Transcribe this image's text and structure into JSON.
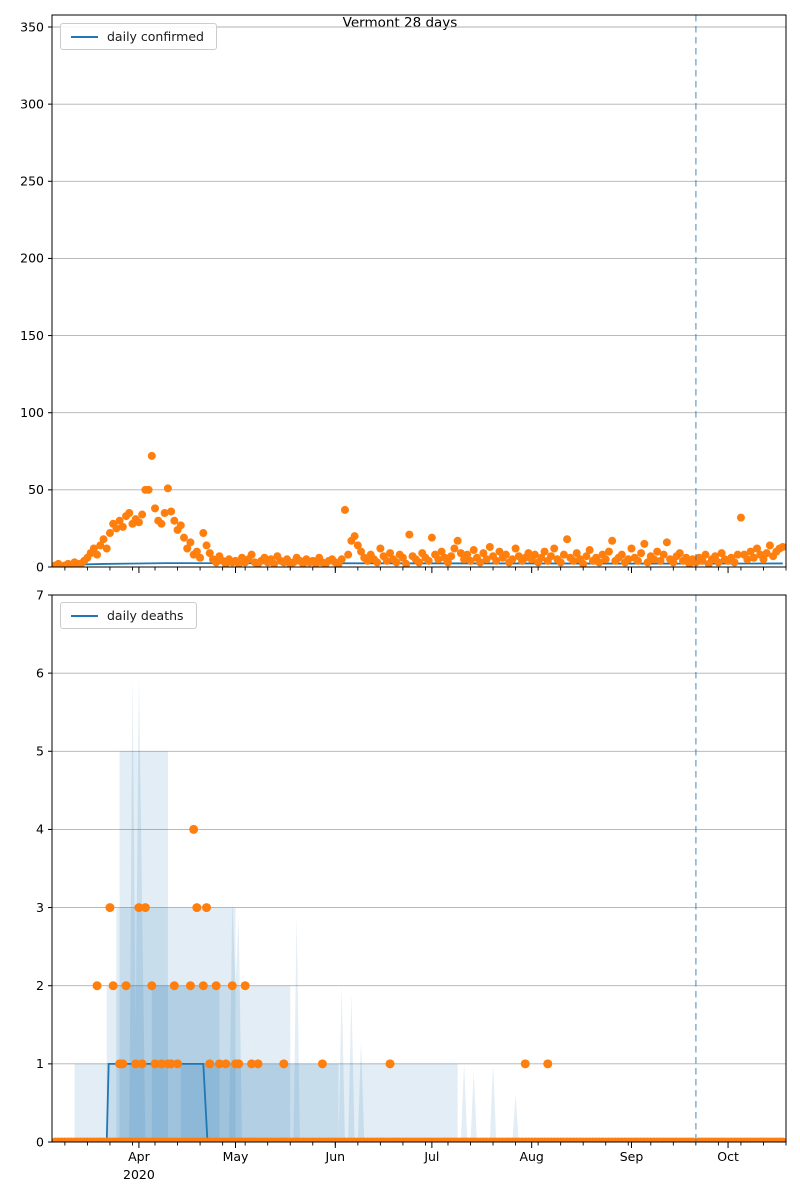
{
  "title": "Vermont 28 days",
  "colors": {
    "scatter": "#ff7f0e",
    "line": "#1f77b4",
    "band": "rgba(31,119,180,0.13)",
    "vline": "rgba(31,119,180,0.5)",
    "grid": "#b0b0b0",
    "spine": "#000000",
    "text": "#000000"
  },
  "x_axis": {
    "t_min": 4,
    "t_max": 232,
    "t_unit": "days since 2020-03-01",
    "months": [
      {
        "t": 31,
        "label": "Apr",
        "year": "2020"
      },
      {
        "t": 61,
        "label": "May"
      },
      {
        "t": 92,
        "label": "Jun"
      },
      {
        "t": 122,
        "label": "Jul"
      },
      {
        "t": 153,
        "label": "Aug"
      },
      {
        "t": 184,
        "label": "Sep"
      },
      {
        "t": 214,
        "label": "Oct"
      }
    ],
    "minor_start_t": 1,
    "minor_step_days": 7,
    "forecast_vline_t": 204
  },
  "chart_data": [
    {
      "type": "scatter",
      "legend": "daily confirmed",
      "title": "Vermont 28 days",
      "ylim": [
        0,
        350
      ],
      "yticks": [
        0,
        50,
        100,
        150,
        200,
        250,
        300,
        350
      ],
      "grid": "horizontal",
      "legend_position": "upper left",
      "scatter": {
        "t0": 5,
        "values": [
          1,
          2,
          0,
          1,
          2,
          1,
          3,
          2,
          2,
          4,
          6,
          9,
          12,
          8,
          14,
          18,
          12,
          22,
          28,
          25,
          30,
          26,
          33,
          35,
          28,
          31,
          29,
          34,
          50,
          50,
          72,
          38,
          30,
          28,
          35,
          51,
          36,
          30,
          24,
          27,
          19,
          12,
          16,
          8,
          10,
          6,
          22,
          14,
          9,
          5,
          3,
          7,
          4,
          2,
          5,
          3,
          4,
          2,
          6,
          3,
          5,
          8,
          3,
          2,
          4,
          6,
          3,
          5,
          2,
          7,
          4,
          3,
          5,
          2,
          3,
          6,
          4,
          2,
          5,
          3,
          4,
          2,
          6,
          3,
          2,
          4,
          5,
          3,
          2,
          5,
          37,
          8,
          17,
          20,
          14,
          10,
          6,
          4,
          8,
          5,
          3,
          12,
          7,
          4,
          9,
          5,
          3,
          8,
          6,
          2,
          21,
          7,
          5,
          3,
          9,
          6,
          4,
          19,
          8,
          5,
          10,
          6,
          3,
          7,
          12,
          17,
          9,
          5,
          8,
          4,
          11,
          6,
          3,
          9,
          5,
          13,
          7,
          4,
          10,
          6,
          8,
          3,
          5,
          12,
          7,
          4,
          6,
          9,
          5,
          8,
          3,
          6,
          10,
          4,
          7,
          12,
          5,
          3,
          8,
          18,
          6,
          4,
          9,
          5,
          2,
          7,
          11,
          4,
          6,
          3,
          8,
          5,
          10,
          17,
          4,
          6,
          8,
          3,
          5,
          12,
          6,
          4,
          9,
          15,
          3,
          7,
          5,
          10,
          4,
          8,
          16,
          5,
          3,
          7,
          9,
          4,
          6,
          2,
          5,
          3,
          6,
          4,
          8,
          2,
          5,
          7,
          3,
          9,
          5,
          4,
          6,
          3,
          8,
          32,
          8,
          5,
          10,
          6,
          12,
          8,
          5,
          9,
          14,
          7,
          10,
          12,
          13
        ]
      },
      "forecast_line": [
        [
          5,
          1.2
        ],
        [
          20,
          2.0
        ],
        [
          40,
          2.5
        ],
        [
          204,
          2.2
        ],
        [
          231,
          2.3
        ]
      ]
    },
    {
      "type": "scatter",
      "legend": "daily deaths",
      "ylim": [
        0,
        7
      ],
      "yticks": [
        0,
        1,
        2,
        3,
        4,
        5,
        6,
        7
      ],
      "grid": "horizontal",
      "legend_position": "upper left",
      "zero_dots": {
        "t_start": 5,
        "t_end": 231,
        "gap_t": [
          204
        ]
      },
      "scatter_points": [
        [
          18,
          2
        ],
        [
          22,
          3
        ],
        [
          23,
          2
        ],
        [
          25,
          1
        ],
        [
          26,
          1
        ],
        [
          27,
          2
        ],
        [
          30,
          1
        ],
        [
          31,
          3
        ],
        [
          32,
          1
        ],
        [
          33,
          3
        ],
        [
          35,
          2
        ],
        [
          36,
          1
        ],
        [
          38,
          1
        ],
        [
          40,
          1
        ],
        [
          41,
          1
        ],
        [
          42,
          2
        ],
        [
          43,
          1
        ],
        [
          47,
          2
        ],
        [
          48,
          4
        ],
        [
          49,
          3
        ],
        [
          51,
          2
        ],
        [
          52,
          3
        ],
        [
          53,
          1
        ],
        [
          55,
          2
        ],
        [
          56,
          1
        ],
        [
          58,
          1
        ],
        [
          60,
          2
        ],
        [
          61,
          1
        ],
        [
          62,
          1
        ],
        [
          64,
          2
        ],
        [
          66,
          1
        ],
        [
          68,
          1
        ],
        [
          76,
          1
        ],
        [
          88,
          1
        ],
        [
          109,
          1
        ],
        [
          151,
          1
        ],
        [
          158,
          1
        ]
      ],
      "forecast_line": [
        [
          5,
          0
        ],
        [
          21,
          0
        ],
        [
          21.6,
          1
        ],
        [
          51,
          1
        ],
        [
          52.3,
          0
        ],
        [
          231,
          0
        ]
      ],
      "bands": [
        [
          [
            11,
            0
          ],
          [
            11,
            1
          ],
          [
            130,
            1
          ],
          [
            130,
            0
          ]
        ],
        [
          [
            21,
            0
          ],
          [
            21,
            2
          ],
          [
            78,
            2
          ],
          [
            78,
            0
          ]
        ],
        [
          [
            24,
            0
          ],
          [
            24,
            3
          ],
          [
            61,
            3
          ],
          [
            61,
            0
          ]
        ],
        [
          [
            25,
            0
          ],
          [
            25,
            5
          ],
          [
            40,
            5
          ],
          [
            40,
            0
          ]
        ],
        [
          [
            28,
            0
          ],
          [
            29,
            6
          ],
          [
            30,
            1.5
          ],
          [
            31,
            6
          ],
          [
            33,
            0
          ]
        ],
        [
          [
            35,
            0
          ],
          [
            35,
            2
          ],
          [
            56,
            2
          ],
          [
            56,
            0
          ]
        ],
        [
          [
            44,
            0
          ],
          [
            44,
            1
          ],
          [
            93,
            1
          ],
          [
            93,
            0
          ]
        ],
        [
          [
            59,
            0
          ],
          [
            60,
            3.1
          ],
          [
            61,
            2
          ],
          [
            62,
            2.9
          ],
          [
            63,
            0
          ]
        ],
        [
          [
            79,
            0
          ],
          [
            80,
            2.9
          ],
          [
            81,
            0
          ]
        ],
        [
          [
            93,
            0
          ],
          [
            94,
            2
          ],
          [
            95,
            0
          ]
        ],
        [
          [
            96,
            0
          ],
          [
            97,
            1.9
          ],
          [
            98,
            0
          ]
        ],
        [
          [
            99,
            0
          ],
          [
            100,
            1.3
          ],
          [
            101,
            0
          ]
        ],
        [
          [
            131,
            0
          ],
          [
            132,
            1
          ],
          [
            133,
            0
          ]
        ],
        [
          [
            134,
            0
          ],
          [
            135,
            0.9
          ],
          [
            136,
            0
          ]
        ],
        [
          [
            140,
            0
          ],
          [
            141,
            1
          ],
          [
            142,
            0
          ]
        ],
        [
          [
            147,
            0
          ],
          [
            148,
            0.6
          ],
          [
            149,
            0
          ]
        ]
      ]
    }
  ]
}
